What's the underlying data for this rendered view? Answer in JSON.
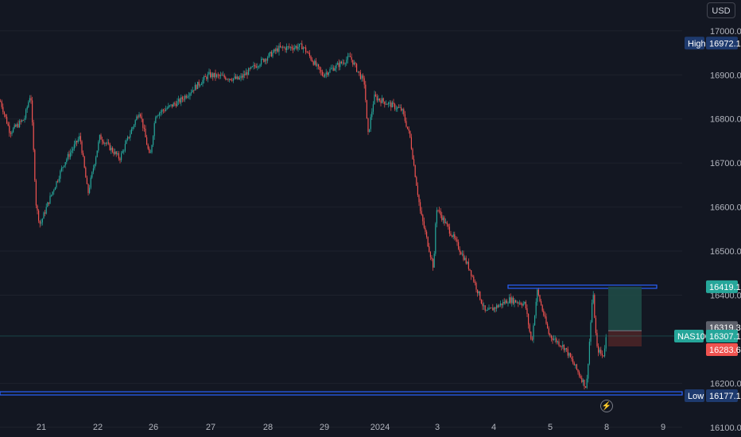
{
  "currency": "USD",
  "symbol": "NAS100",
  "badges": {
    "high_label": "High",
    "high_value": "16972.1",
    "low_label": "Low",
    "low_value": "16177.1",
    "target_value": "16419.1",
    "entry_value": "16319.3",
    "last_value": "16307.1",
    "stop_value": "16283.6"
  },
  "colors": {
    "background": "#131722",
    "up": "#26a69a",
    "down": "#ef5350",
    "level_line": "#2962ff",
    "target_zone": "#1f4a46",
    "stop_zone": "#4a2327",
    "grid": "#1e222d"
  },
  "chart_data": {
    "type": "candlestick",
    "y_axis": {
      "range": [
        16078,
        17070
      ],
      "ticks": [
        "17000.0",
        "16900.0",
        "16800.0",
        "16700.0",
        "16600.0",
        "16500.0",
        "16400.0",
        "16200.0",
        "16100.0"
      ]
    },
    "x_axis": {
      "ticks": [
        "21",
        "22",
        "26",
        "27",
        "28",
        "29",
        "2024",
        "3",
        "4",
        "5",
        "8",
        "9"
      ]
    },
    "price_path": [
      [
        0,
        16840
      ],
      [
        12,
        16770
      ],
      [
        30,
        16800
      ],
      [
        38,
        16860
      ],
      [
        45,
        16600
      ],
      [
        50,
        16560
      ],
      [
        60,
        16610
      ],
      [
        80,
        16700
      ],
      [
        100,
        16760
      ],
      [
        110,
        16630
      ],
      [
        125,
        16760
      ],
      [
        150,
        16710
      ],
      [
        175,
        16820
      ],
      [
        188,
        16710
      ],
      [
        195,
        16810
      ],
      [
        225,
        16840
      ],
      [
        262,
        16900
      ],
      [
        300,
        16890
      ],
      [
        320,
        16920
      ],
      [
        350,
        16960
      ],
      [
        380,
        16965
      ],
      [
        405,
        16900
      ],
      [
        440,
        16940
      ],
      [
        458,
        16880
      ],
      [
        462,
        16760
      ],
      [
        470,
        16850
      ],
      [
        505,
        16820
      ],
      [
        515,
        16760
      ],
      [
        528,
        16590
      ],
      [
        545,
        16460
      ],
      [
        548,
        16600
      ],
      [
        570,
        16530
      ],
      [
        590,
        16460
      ],
      [
        610,
        16360
      ],
      [
        640,
        16390
      ],
      [
        660,
        16380
      ],
      [
        668,
        16290
      ],
      [
        675,
        16410
      ],
      [
        690,
        16310
      ],
      [
        710,
        16280
      ],
      [
        725,
        16230
      ],
      [
        737,
        16190
      ],
      [
        745,
        16410
      ],
      [
        750,
        16280
      ],
      [
        758,
        16260
      ],
      [
        762,
        16307
      ]
    ],
    "levels": [
      16419.1,
      16177.1
    ],
    "position": {
      "target": 16419.1,
      "entry": 16319.3,
      "stop": 16283.6,
      "last": 16307.1
    }
  }
}
